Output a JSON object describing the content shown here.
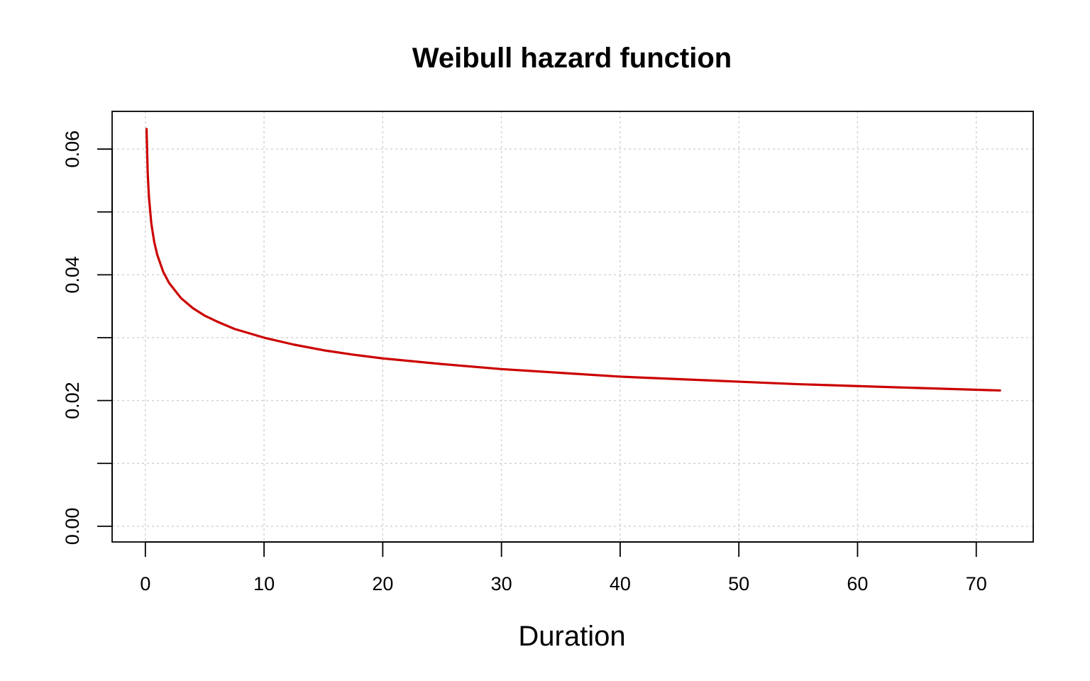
{
  "chart_data": {
    "type": "line",
    "title": "Weibull hazard function",
    "xlabel": "Duration",
    "ylabel": "",
    "xlim": [
      -2.8,
      74.8
    ],
    "ylim": [
      -0.0025,
      0.066
    ],
    "xticks": [
      0,
      10,
      20,
      30,
      40,
      50,
      60,
      70
    ],
    "xtick_labels": [
      "0",
      "10",
      "20",
      "30",
      "40",
      "50",
      "60",
      "70"
    ],
    "yticks": [
      0.0,
      0.01,
      0.02,
      0.03,
      0.04,
      0.05,
      0.06
    ],
    "ytick_labels": [
      "0.00",
      "",
      "0.02",
      "",
      "0.04",
      "",
      "0.06"
    ],
    "grid": true,
    "series": [
      {
        "color": "#cc0000",
        "x": [
          0.1,
          0.2,
          0.3,
          0.5,
          0.75,
          1,
          1.5,
          2,
          3,
          4,
          5,
          6,
          7.5,
          10,
          12.5,
          15,
          17.5,
          20,
          25,
          30,
          35,
          40,
          45,
          50,
          55,
          60,
          65,
          72
        ],
        "y": [
          0.0632,
          0.0561,
          0.0524,
          0.0482,
          0.0452,
          0.0432,
          0.0405,
          0.0387,
          0.0363,
          0.0347,
          0.0335,
          0.0326,
          0.0314,
          0.03,
          0.0289,
          0.028,
          0.0273,
          0.0267,
          0.0258,
          0.025,
          0.0244,
          0.0238,
          0.0234,
          0.023,
          0.0226,
          0.0223,
          0.022,
          0.0216
        ]
      }
    ]
  }
}
